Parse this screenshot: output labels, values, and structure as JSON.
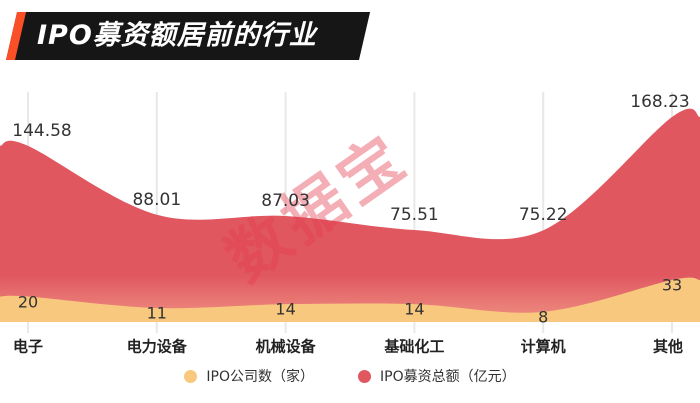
{
  "title": "IPO募资额居前的行业",
  "watermark": "数据宝",
  "colors": {
    "red": "#e05760",
    "red_soft": "#ef9183",
    "yellow": "#f8c87e",
    "banner_bg": "#161616",
    "banner_accent": "#fb4f28",
    "grid": "#e8e8e6",
    "label": "#333333"
  },
  "legend": [
    {
      "label": "IPO公司数（家）",
      "color": "#f8c87e"
    },
    {
      "label": "IPO募资总额（亿元）",
      "color": "#e05760"
    }
  ],
  "chart_data": {
    "type": "area",
    "categories": [
      "电子",
      "电力设备",
      "机械设备",
      "基础化工",
      "计算机",
      "其他"
    ],
    "series": [
      {
        "name": "IPO募资总额（亿元）",
        "values": [
          144.58,
          88.01,
          87.03,
          75.51,
          75.22,
          168.23
        ],
        "color": "#e05760"
      },
      {
        "name": "IPO公司数（家）",
        "values": [
          20,
          11,
          14,
          14,
          8,
          33
        ],
        "color": "#f8c87e"
      }
    ],
    "title": "IPO募资额居前的行业",
    "xlabel": "",
    "ylabel": "",
    "ylim": [
      0,
      170
    ],
    "grid": "vertical",
    "legend_position": "bottom"
  }
}
